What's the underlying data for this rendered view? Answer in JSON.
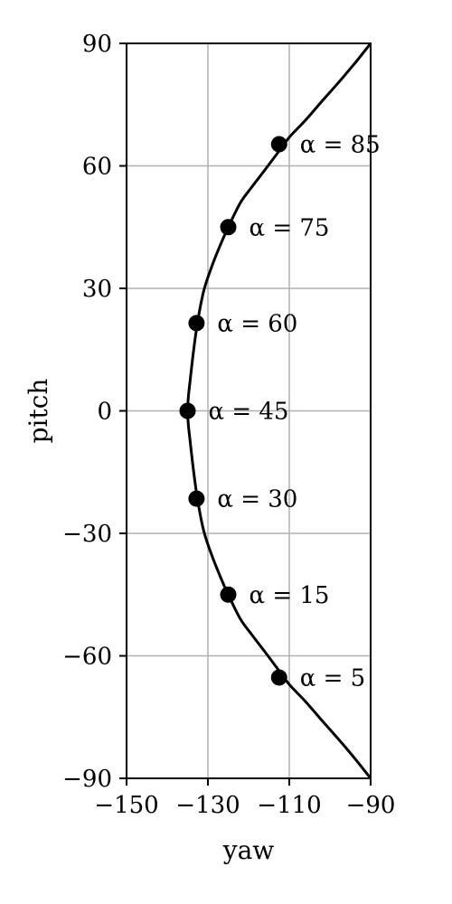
{
  "chart_data": {
    "type": "line",
    "title": "",
    "xlabel": "yaw",
    "ylabel": "pitch",
    "xlim": [
      -150,
      -90
    ],
    "ylim": [
      -90,
      90
    ],
    "xticks": [
      -150,
      -130,
      -110,
      -90
    ],
    "xtick_labels": [
      "−150",
      "−130",
      "−110",
      "−90"
    ],
    "yticks": [
      -90,
      -60,
      -30,
      0,
      30,
      60,
      90
    ],
    "ytick_labels": [
      "−90",
      "−60",
      "−30",
      "0",
      "30",
      "60",
      "90"
    ],
    "grid": true,
    "curve": {
      "x": [
        -90,
        -94,
        -98,
        -102,
        -106,
        -110,
        -113,
        -116,
        -119,
        -122,
        -125,
        -127,
        -129,
        -131,
        -132.5,
        -133.5,
        -134.3,
        -134.8,
        -135,
        -134.8,
        -134.3,
        -133.5,
        -132.5,
        -131,
        -129,
        -127,
        -125,
        -122,
        -119,
        -116,
        -113,
        -110,
        -106,
        -102,
        -98,
        -94,
        -90
      ],
      "y": [
        -90,
        -85,
        -80.3,
        -75.8,
        -71.2,
        -67,
        -63,
        -59,
        -55.1,
        -51,
        -45,
        -40.5,
        -35.5,
        -29.5,
        -22,
        -15,
        -8,
        -3.5,
        0,
        3.5,
        8,
        15,
        22,
        29.5,
        35.5,
        40.5,
        45,
        51,
        55.1,
        59,
        63,
        67,
        71.2,
        75.8,
        80.3,
        85,
        90
      ]
    },
    "points": [
      {
        "x": -112.5,
        "y": 65.3,
        "label": "α = 85"
      },
      {
        "x": -125,
        "y": 45,
        "label": "α = 75"
      },
      {
        "x": -132.8,
        "y": 21.5,
        "label": "α = 60"
      },
      {
        "x": -135,
        "y": 0,
        "label": "α = 45"
      },
      {
        "x": -132.8,
        "y": -21.5,
        "label": "α = 30"
      },
      {
        "x": -125,
        "y": -45,
        "label": "α = 15"
      },
      {
        "x": -112.5,
        "y": -65.3,
        "label": "α = 5"
      }
    ]
  }
}
